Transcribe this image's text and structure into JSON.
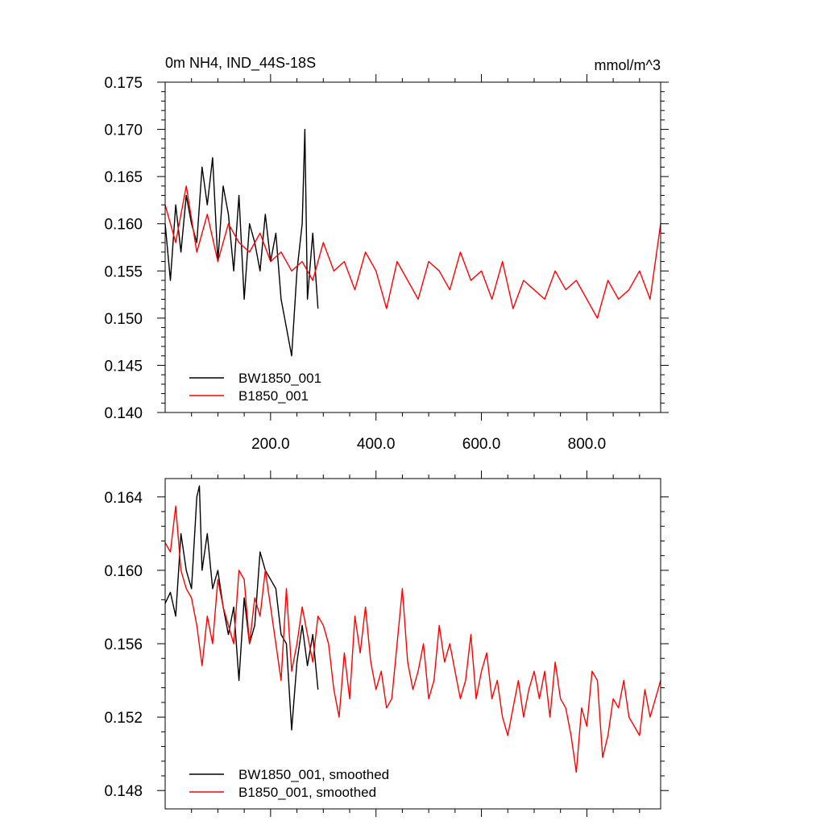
{
  "chart_data": [
    {
      "type": "line",
      "title": "0m NH4, IND_44S-18S",
      "units": "mmol/m^3",
      "xlim": [
        0,
        940
      ],
      "ylim": [
        0.14,
        0.175
      ],
      "x_ticks": [
        200,
        400,
        600,
        800
      ],
      "x_tick_labels": [
        "200.0",
        "400.0",
        "600.0",
        "800.0"
      ],
      "y_ticks": [
        0.14,
        0.145,
        0.15,
        0.155,
        0.16,
        0.165,
        0.17,
        0.175
      ],
      "y_tick_labels": [
        "0.140",
        "0.145",
        "0.150",
        "0.155",
        "0.160",
        "0.165",
        "0.170",
        "0.175"
      ],
      "legend_position": "bottom-left",
      "grid": false,
      "series": [
        {
          "name": "BW1850_001",
          "color": "#000000",
          "x": [
            0,
            10,
            20,
            30,
            40,
            50,
            60,
            70,
            80,
            90,
            100,
            110,
            120,
            130,
            140,
            150,
            160,
            170,
            180,
            190,
            200,
            210,
            220,
            230,
            240,
            250,
            260,
            265,
            270,
            280,
            290
          ],
          "values": [
            0.16,
            0.154,
            0.162,
            0.157,
            0.163,
            0.16,
            0.158,
            0.166,
            0.162,
            0.167,
            0.156,
            0.164,
            0.161,
            0.155,
            0.163,
            0.152,
            0.16,
            0.158,
            0.155,
            0.161,
            0.156,
            0.159,
            0.152,
            0.149,
            0.146,
            0.155,
            0.16,
            0.17,
            0.152,
            0.159,
            0.151
          ]
        },
        {
          "name": "B1850_001",
          "color": "#ff0000",
          "x": [
            0,
            20,
            40,
            60,
            80,
            100,
            120,
            140,
            160,
            180,
            200,
            220,
            240,
            260,
            280,
            300,
            320,
            340,
            360,
            380,
            400,
            420,
            440,
            460,
            480,
            500,
            520,
            540,
            560,
            580,
            600,
            620,
            640,
            660,
            680,
            700,
            720,
            740,
            760,
            780,
            800,
            820,
            840,
            860,
            880,
            900,
            920,
            940
          ],
          "values": [
            0.162,
            0.158,
            0.164,
            0.157,
            0.161,
            0.156,
            0.16,
            0.158,
            0.157,
            0.159,
            0.156,
            0.157,
            0.155,
            0.156,
            0.154,
            0.158,
            0.155,
            0.156,
            0.153,
            0.157,
            0.155,
            0.151,
            0.156,
            0.154,
            0.152,
            0.156,
            0.155,
            0.153,
            0.157,
            0.154,
            0.155,
            0.152,
            0.156,
            0.151,
            0.154,
            0.153,
            0.152,
            0.155,
            0.153,
            0.154,
            0.152,
            0.15,
            0.154,
            0.152,
            0.153,
            0.155,
            0.152,
            0.16
          ]
        }
      ]
    },
    {
      "type": "line",
      "xlim": [
        0,
        940
      ],
      "ylim": [
        0.147,
        0.165
      ],
      "y_ticks": [
        0.148,
        0.152,
        0.156,
        0.16,
        0.164
      ],
      "y_tick_labels": [
        "0.148",
        "0.152",
        "0.156",
        "0.160",
        "0.164"
      ],
      "legend_position": "bottom-left",
      "grid": false,
      "series": [
        {
          "name": "BW1850_001, smoothed",
          "color": "#000000",
          "x": [
            0,
            10,
            20,
            30,
            40,
            50,
            60,
            65,
            70,
            80,
            90,
            100,
            110,
            120,
            130,
            140,
            150,
            160,
            170,
            180,
            190,
            200,
            210,
            220,
            230,
            240,
            250,
            260,
            270,
            280,
            290
          ],
          "values": [
            0.1582,
            0.1588,
            0.1575,
            0.162,
            0.16,
            0.159,
            0.164,
            0.1646,
            0.16,
            0.162,
            0.159,
            0.16,
            0.158,
            0.1565,
            0.158,
            0.154,
            0.1585,
            0.156,
            0.157,
            0.161,
            0.16,
            0.1595,
            0.159,
            0.1565,
            0.156,
            0.1513,
            0.155,
            0.157,
            0.1548,
            0.1565,
            0.1535
          ]
        },
        {
          "name": "B1850_001, smoothed",
          "color": "#ff0000",
          "x": [
            0,
            10,
            20,
            30,
            40,
            50,
            60,
            70,
            80,
            90,
            100,
            110,
            120,
            130,
            140,
            150,
            160,
            170,
            180,
            190,
            200,
            210,
            220,
            230,
            240,
            250,
            260,
            270,
            280,
            290,
            300,
            310,
            320,
            330,
            340,
            350,
            360,
            370,
            380,
            390,
            400,
            410,
            420,
            430,
            440,
            450,
            460,
            470,
            480,
            490,
            500,
            510,
            520,
            530,
            540,
            550,
            560,
            570,
            580,
            590,
            600,
            610,
            620,
            630,
            640,
            650,
            660,
            670,
            680,
            690,
            700,
            710,
            720,
            730,
            740,
            750,
            760,
            770,
            780,
            790,
            800,
            810,
            820,
            830,
            840,
            850,
            860,
            870,
            880,
            890,
            900,
            910,
            920,
            930,
            940
          ],
          "values": [
            0.1615,
            0.161,
            0.1635,
            0.16,
            0.159,
            0.1585,
            0.157,
            0.1548,
            0.1575,
            0.156,
            0.1595,
            0.158,
            0.157,
            0.156,
            0.16,
            0.1595,
            0.156,
            0.1585,
            0.1575,
            0.16,
            0.158,
            0.156,
            0.154,
            0.159,
            0.1545,
            0.156,
            0.158,
            0.1565,
            0.155,
            0.1575,
            0.157,
            0.156,
            0.1535,
            0.152,
            0.1555,
            0.153,
            0.1575,
            0.1555,
            0.158,
            0.155,
            0.1535,
            0.1545,
            0.1525,
            0.153,
            0.156,
            0.159,
            0.155,
            0.1535,
            0.1545,
            0.156,
            0.153,
            0.154,
            0.157,
            0.155,
            0.156,
            0.1545,
            0.153,
            0.154,
            0.1565,
            0.153,
            0.1545,
            0.1555,
            0.153,
            0.154,
            0.152,
            0.151,
            0.1525,
            0.154,
            0.152,
            0.1535,
            0.1545,
            0.153,
            0.1545,
            0.152,
            0.155,
            0.153,
            0.1525,
            0.151,
            0.149,
            0.1525,
            0.1515,
            0.1545,
            0.154,
            0.1498,
            0.151,
            0.153,
            0.1525,
            0.154,
            0.152,
            0.1515,
            0.151,
            0.1535,
            0.152,
            0.153,
            0.154
          ]
        }
      ]
    }
  ]
}
